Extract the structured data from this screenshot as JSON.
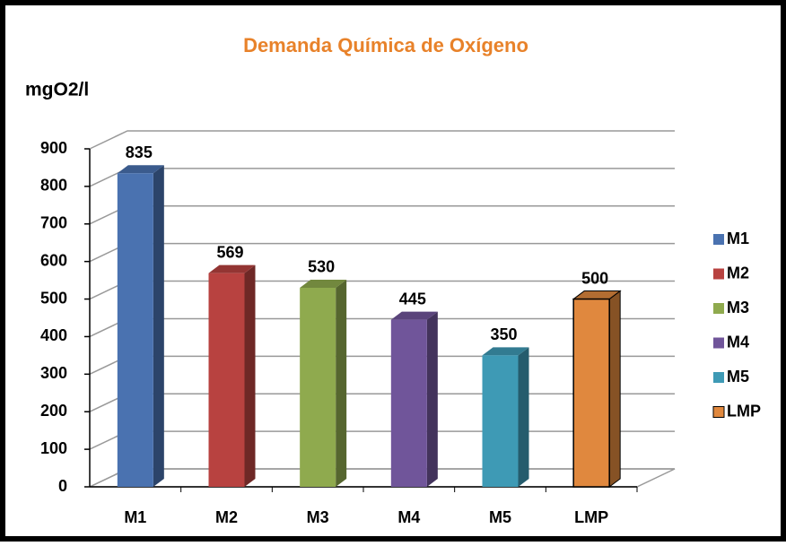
{
  "chart_data": {
    "type": "bar3d",
    "title": "Demanda Química de Oxígeno",
    "y_axis_label": "mgO2/l",
    "categories": [
      "M1",
      "M2",
      "M3",
      "M4",
      "M5",
      "LMP"
    ],
    "values": [
      835,
      569,
      530,
      445,
      350,
      500
    ],
    "colors": [
      "#4a72b0",
      "#b84240",
      "#8faa4e",
      "#70559a",
      "#3e9ab5",
      "#e0883e"
    ],
    "ylim": [
      0,
      900
    ],
    "yticks": [
      0,
      100,
      200,
      300,
      400,
      500,
      600,
      700,
      800,
      900
    ],
    "grid": true,
    "legend": "right"
  }
}
